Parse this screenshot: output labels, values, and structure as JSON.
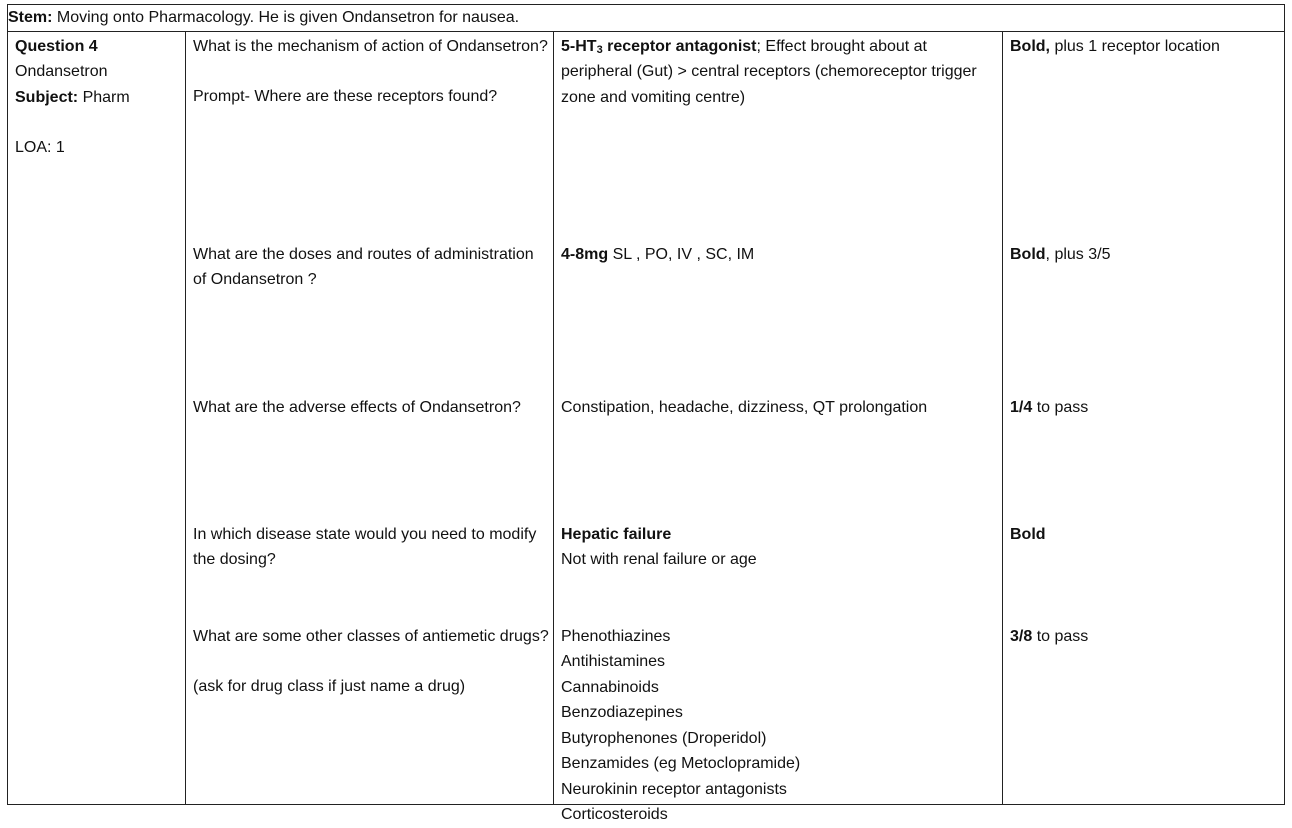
{
  "stem": {
    "label": "Stem:",
    "text": " Moving onto Pharmacology. He is given Ondansetron for nausea."
  },
  "meta": {
    "question": "Question 4",
    "drug": "Ondansetron",
    "subject_label": "Subject:",
    "subject": " Pharm",
    "loa": "LOA: 1"
  },
  "q1": {
    "question": "What is the mechanism of action of Ondansetron?",
    "prompt": "Prompt- Where are these receptors found?",
    "answer_bold_pre": "5-HT",
    "answer_sub": "3",
    "answer_bold_post": " receptor antagonist",
    "answer_rest": "; Effect brought about at peripheral  (Gut) > central receptors (chemoreceptor trigger zone and vomiting centre)",
    "marking_bold": "Bold,",
    "marking_rest": " plus 1 receptor location"
  },
  "q2": {
    "question": "What are the doses and routes of administration of Ondansetron ?",
    "answer_bold": "4-8mg",
    "answer_rest": " SL , PO, IV , SC, IM",
    "marking_bold": "Bold",
    "marking_rest": ", plus 3/5"
  },
  "q3": {
    "question": "What are the adverse effects of Ondansetron?",
    "answer": "Constipation, headache, dizziness, QT prolongation",
    "marking_bold": "1/4",
    "marking_rest": " to pass"
  },
  "q4": {
    "question": "In which disease state would you need to modify the dosing?",
    "answer_bold": "Hepatic failure",
    "answer_rest": "Not with renal failure or age",
    "marking_bold": "Bold"
  },
  "q5": {
    "question": "What are some other classes of antiemetic drugs?",
    "note": "(ask for drug class if just name a drug)",
    "answers": [
      "Phenothiazines",
      "Antihistamines",
      "Cannabinoids",
      "Benzodiazepines",
      "Butyrophenones (Droperidol)",
      "Benzamides (eg Metoclopramide)",
      "Neurokinin receptor antagonists",
      "Corticosteroids"
    ],
    "marking_bold": "3/8",
    "marking_rest": " to pass"
  }
}
